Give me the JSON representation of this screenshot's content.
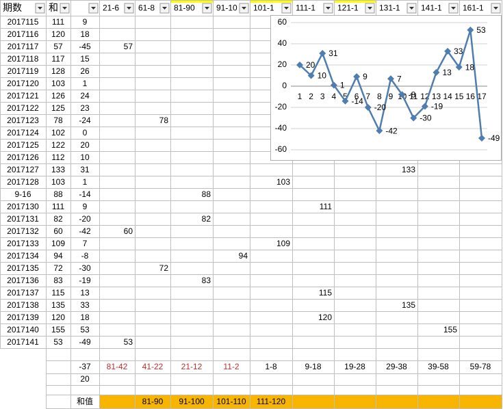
{
  "table": {
    "header": {
      "period": "期数",
      "sum": "和",
      "ranges": [
        "21-6",
        "61-8",
        "81-90",
        "91-10",
        "101-1",
        "111-1",
        "121-1",
        "131-1",
        "141-1",
        "161-1"
      ]
    },
    "rows": [
      [
        "2017115",
        111,
        9,
        null,
        null,
        null,
        null,
        null,
        null,
        null,
        null,
        null,
        null
      ],
      [
        "2017116",
        120,
        18,
        null,
        null,
        null,
        null,
        null,
        null,
        null,
        null,
        null,
        null
      ],
      [
        "2017117",
        57,
        -45,
        57,
        null,
        null,
        null,
        null,
        null,
        null,
        null,
        null,
        null
      ],
      [
        "2017118",
        117,
        15,
        null,
        null,
        null,
        null,
        null,
        null,
        null,
        null,
        null,
        null
      ],
      [
        "2017119",
        128,
        26,
        null,
        null,
        null,
        null,
        null,
        null,
        null,
        null,
        null,
        null
      ],
      [
        "2017120",
        103,
        1,
        null,
        null,
        null,
        null,
        null,
        null,
        null,
        null,
        null,
        null
      ],
      [
        "2017121",
        126,
        24,
        null,
        null,
        null,
        null,
        null,
        null,
        null,
        null,
        null,
        null
      ],
      [
        "2017122",
        125,
        23,
        null,
        null,
        null,
        null,
        null,
        null,
        null,
        null,
        null,
        null
      ],
      [
        "2017123",
        78,
        -24,
        null,
        78,
        null,
        null,
        null,
        null,
        null,
        null,
        null,
        null
      ],
      [
        "2017124",
        102,
        0,
        null,
        null,
        null,
        null,
        null,
        null,
        null,
        null,
        null,
        null
      ],
      [
        "2017125",
        122,
        20,
        null,
        null,
        null,
        null,
        null,
        null,
        null,
        null,
        null,
        null
      ],
      [
        "2017126",
        112,
        10,
        null,
        null,
        null,
        null,
        null,
        null,
        null,
        null,
        null,
        null
      ],
      [
        "2017127",
        133,
        31,
        null,
        null,
        null,
        null,
        null,
        null,
        null,
        133,
        null,
        null
      ],
      [
        "2017128",
        103,
        1,
        null,
        null,
        null,
        null,
        103,
        null,
        null,
        null,
        null,
        null
      ],
      [
        "9-16",
        88,
        -14,
        null,
        null,
        88,
        null,
        null,
        null,
        null,
        null,
        null,
        null
      ],
      [
        "2017130",
        111,
        9,
        null,
        null,
        null,
        null,
        null,
        111,
        null,
        null,
        null,
        null
      ],
      [
        "2017131",
        82,
        -20,
        null,
        null,
        82,
        null,
        null,
        null,
        null,
        null,
        null,
        null
      ],
      [
        "2017132",
        60,
        -42,
        60,
        null,
        null,
        null,
        null,
        null,
        null,
        null,
        null,
        null
      ],
      [
        "2017133",
        109,
        7,
        null,
        null,
        null,
        null,
        109,
        null,
        null,
        null,
        null,
        null
      ],
      [
        "2017134",
        94,
        -8,
        null,
        null,
        null,
        94,
        null,
        null,
        null,
        null,
        null,
        null
      ],
      [
        "2017135",
        72,
        -30,
        null,
        72,
        null,
        null,
        null,
        null,
        null,
        null,
        null,
        null
      ],
      [
        "2017136",
        83,
        -19,
        null,
        null,
        83,
        null,
        null,
        null,
        null,
        null,
        null,
        null
      ],
      [
        "2017137",
        115,
        13,
        null,
        null,
        null,
        null,
        null,
        115,
        null,
        null,
        null,
        null
      ],
      [
        "2017138",
        135,
        33,
        null,
        null,
        null,
        null,
        null,
        null,
        null,
        135,
        null,
        null
      ],
      [
        "2017139",
        120,
        18,
        null,
        null,
        null,
        null,
        null,
        120,
        null,
        null,
        null,
        null
      ],
      [
        "2017140",
        155,
        53,
        null,
        null,
        null,
        null,
        null,
        null,
        null,
        null,
        155,
        null
      ],
      [
        "2017141",
        53,
        -49,
        53,
        null,
        null,
        null,
        null,
        null,
        null,
        null,
        null,
        null
      ]
    ]
  },
  "summary": {
    "row1": {
      "diff": -37,
      "ranges": [
        "81-42",
        "41-22",
        "21-12",
        "11-2",
        "1-8",
        "9-18",
        "19-28",
        "29-38",
        "39-58",
        "59-78"
      ]
    },
    "row2": {
      "diff": 20
    },
    "row3": {
      "label": "和值",
      "ranges": [
        "81-90",
        "91-100",
        "101-110",
        "111-120"
      ]
    }
  },
  "chart_data": {
    "type": "line",
    "color": "#4f7db0",
    "categories": [
      1,
      2,
      3,
      4,
      5,
      6,
      7,
      8,
      9,
      10,
      11,
      12,
      13,
      14,
      15,
      16,
      17
    ],
    "values": [
      20,
      10,
      31,
      1,
      -14,
      9,
      -20,
      -42,
      7,
      -8,
      -30,
      -19,
      13,
      33,
      18,
      53,
      -49
    ],
    "ylim": [
      -60,
      60
    ],
    "yticks": [
      -60,
      -40,
      -20,
      0,
      20,
      40,
      60
    ],
    "grid": true
  }
}
